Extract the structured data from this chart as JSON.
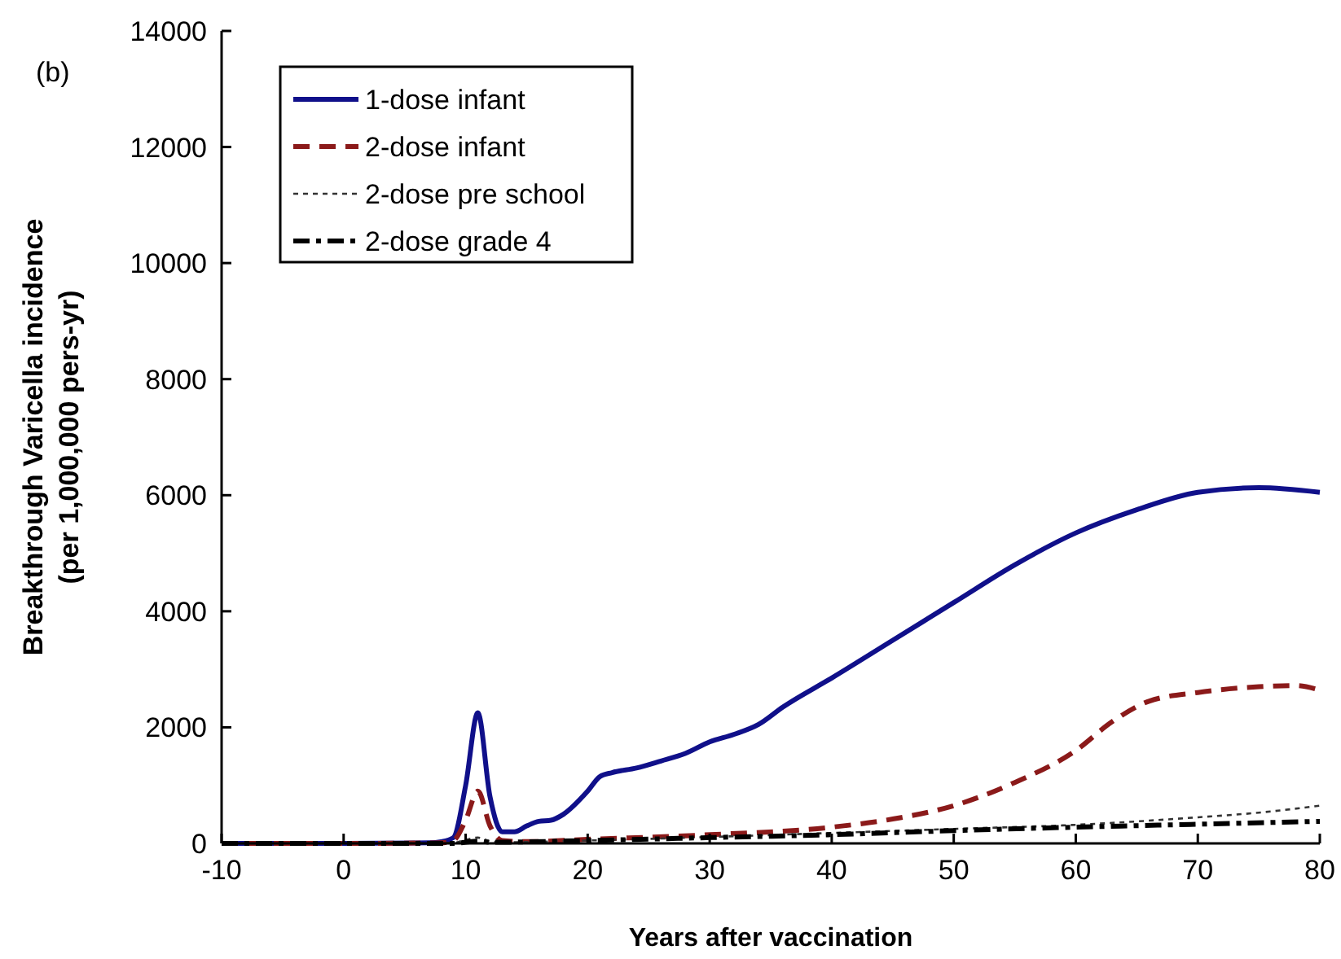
{
  "chart_data": {
    "type": "line",
    "xlabel": "Years after vaccination",
    "ylabel": "Breakthrough Varicella incidence\n(per 1,000,000 pers-yr)",
    "annotations": [
      "(b)"
    ],
    "xlim": [
      -10,
      80
    ],
    "ylim": [
      0,
      14000
    ],
    "xticks": [
      -10,
      0,
      10,
      20,
      30,
      40,
      50,
      60,
      70,
      80
    ],
    "yticks": [
      0,
      2000,
      4000,
      6000,
      8000,
      10000,
      12000,
      14000
    ],
    "grid": false,
    "legend": "top left",
    "series": [
      {
        "name": "1-dose infant",
        "color": "#10108a",
        "line_style": "solid",
        "x": [
          -10,
          0,
          7,
          8,
          9,
          10,
          11,
          12,
          13,
          14,
          15,
          16,
          17,
          18,
          20,
          21,
          22,
          24,
          26,
          28,
          30,
          32,
          34,
          36,
          40,
          45,
          50,
          55,
          60,
          65,
          70,
          75,
          80
        ],
        "values": [
          0,
          0,
          10,
          30,
          100,
          1000,
          2250,
          800,
          200,
          200,
          300,
          380,
          400,
          500,
          900,
          1150,
          1220,
          1300,
          1420,
          1550,
          1750,
          1880,
          2050,
          2350,
          2850,
          3500,
          4150,
          4800,
          5350,
          5750,
          6050,
          6130,
          6050
        ]
      },
      {
        "name": "2-dose infant",
        "color": "#8b1a1a",
        "line_style": "dashed",
        "x": [
          -10,
          0,
          8,
          9,
          10,
          11,
          12,
          13,
          15,
          20,
          30,
          40,
          45,
          50,
          55,
          60,
          63,
          66,
          70,
          75,
          78,
          80
        ],
        "values": [
          0,
          0,
          10,
          50,
          400,
          900,
          300,
          50,
          30,
          70,
          150,
          280,
          420,
          650,
          1050,
          1600,
          2100,
          2450,
          2600,
          2700,
          2720,
          2640
        ]
      },
      {
        "name": "2-dose pre school",
        "color": "#333333",
        "line_style": "dotted",
        "x": [
          -10,
          0,
          9,
          10,
          11,
          12,
          13,
          20,
          30,
          40,
          50,
          60,
          70,
          75,
          80
        ],
        "values": [
          0,
          0,
          10,
          60,
          100,
          40,
          20,
          50,
          110,
          180,
          250,
          320,
          450,
          530,
          650
        ]
      },
      {
        "name": "2-dose grade 4",
        "color": "#000000",
        "line_style": "dashdot",
        "x": [
          -10,
          0,
          9,
          10,
          11,
          12,
          20,
          30,
          40,
          50,
          60,
          70,
          80
        ],
        "values": [
          0,
          0,
          0,
          20,
          40,
          20,
          50,
          100,
          150,
          220,
          280,
          330,
          380
        ]
      }
    ]
  }
}
